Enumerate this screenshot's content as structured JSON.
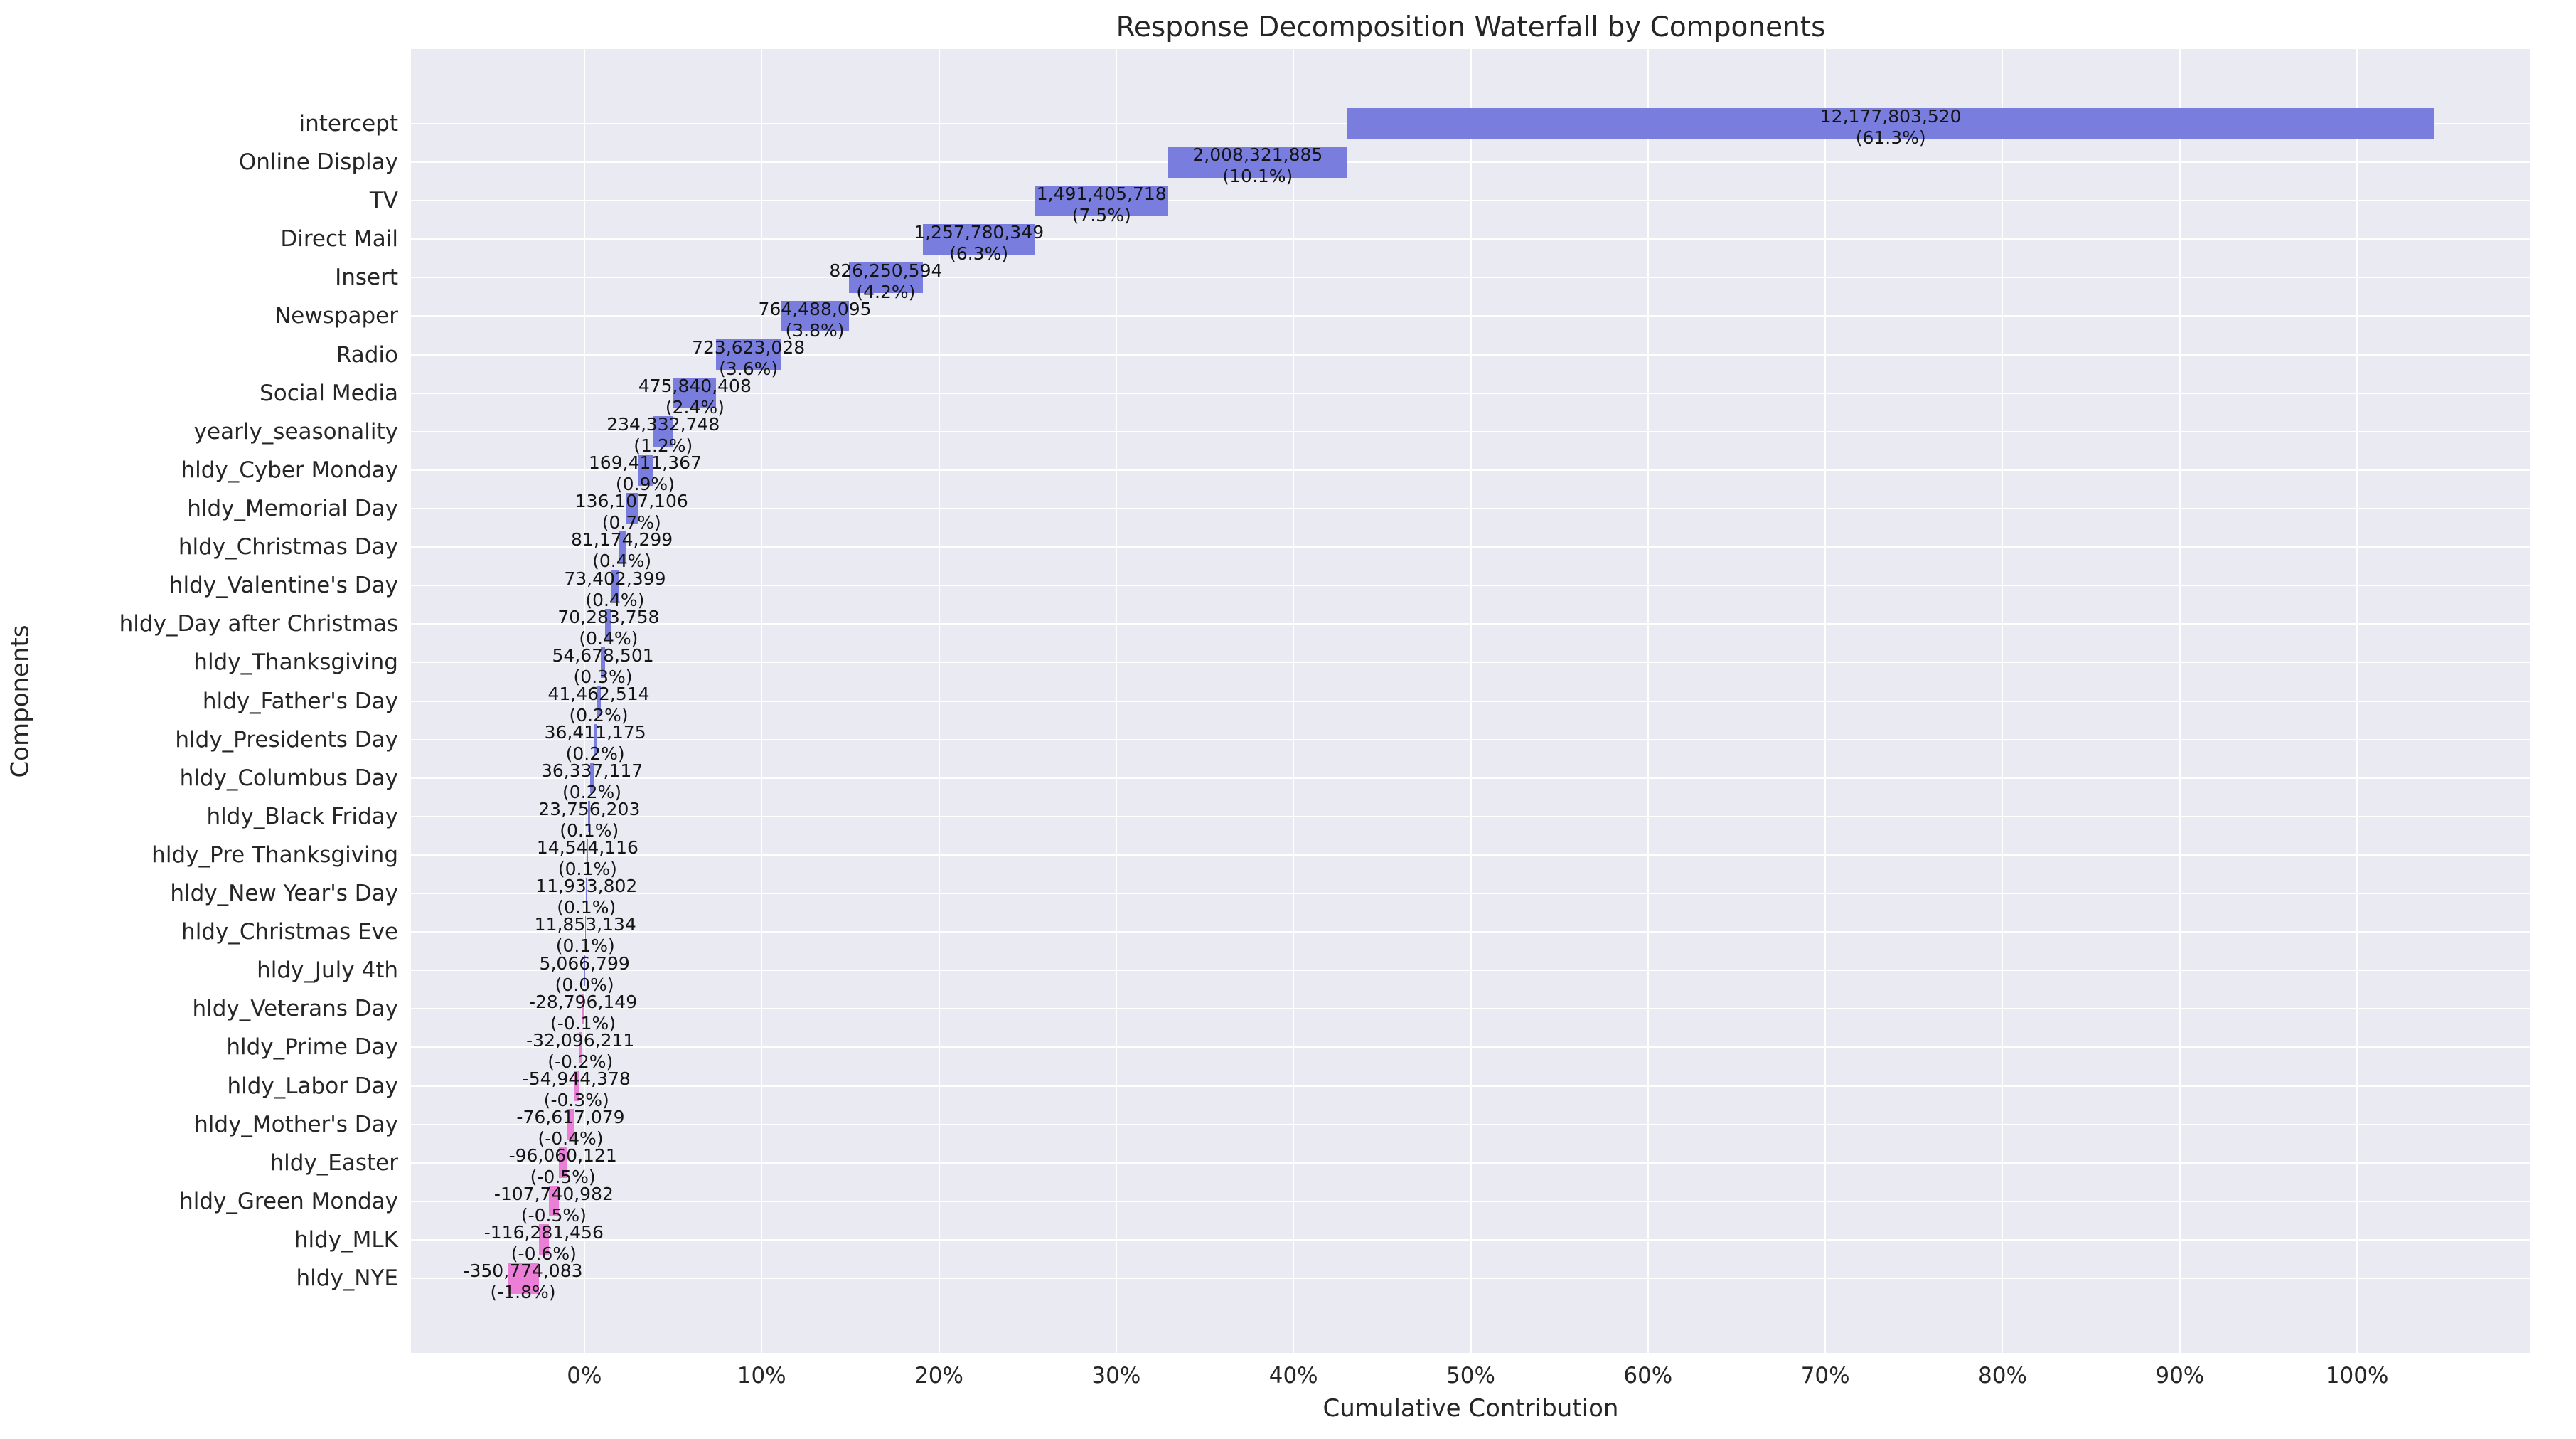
{
  "chart_data": {
    "type": "bar",
    "variant": "waterfall",
    "orientation": "horizontal",
    "title": "Response Decomposition Waterfall by Components",
    "xlabel": "Cumulative Contribution",
    "ylabel": "Components",
    "grid": true,
    "legend": false,
    "x_ticks": [
      {
        "value": 0,
        "label": "0%"
      },
      {
        "value": 10,
        "label": "10%"
      },
      {
        "value": 20,
        "label": "20%"
      },
      {
        "value": 30,
        "label": "30%"
      },
      {
        "value": 40,
        "label": "40%"
      },
      {
        "value": 50,
        "label": "50%"
      },
      {
        "value": 60,
        "label": "60%"
      },
      {
        "value": 70,
        "label": "70%"
      },
      {
        "value": 80,
        "label": "80%"
      },
      {
        "value": 90,
        "label": "90%"
      },
      {
        "value": 100,
        "label": "100%"
      }
    ],
    "colors": {
      "positive": "#797EDE",
      "negative": "#EB7ED6",
      "plot_background": "#EAEAF2",
      "grid_line": "#FFFFFF",
      "text": "#262626"
    },
    "components": [
      {
        "name": "intercept",
        "value": 12177803520,
        "value_label": "12,177,803,520",
        "pct_label": "(61.3%)"
      },
      {
        "name": "Online Display",
        "value": 2008321885,
        "value_label": "2,008,321,885",
        "pct_label": "(10.1%)"
      },
      {
        "name": "TV",
        "value": 1491405718,
        "value_label": "1,491,405,718",
        "pct_label": "(7.5%)"
      },
      {
        "name": "Direct Mail",
        "value": 1257780349,
        "value_label": "1,257,780,349",
        "pct_label": "(6.3%)"
      },
      {
        "name": "Insert",
        "value": 826250594,
        "value_label": "826,250,594",
        "pct_label": "(4.2%)"
      },
      {
        "name": "Newspaper",
        "value": 764488095,
        "value_label": "764,488,095",
        "pct_label": "(3.8%)"
      },
      {
        "name": "Radio",
        "value": 723623028,
        "value_label": "723,623,028",
        "pct_label": "(3.6%)"
      },
      {
        "name": "Social Media",
        "value": 475840408,
        "value_label": "475,840,408",
        "pct_label": "(2.4%)"
      },
      {
        "name": "yearly_seasonality",
        "value": 234332748,
        "value_label": "234,332,748",
        "pct_label": "(1.2%)"
      },
      {
        "name": "hldy_Cyber Monday",
        "value": 169411367,
        "value_label": "169,411,367",
        "pct_label": "(0.9%)"
      },
      {
        "name": "hldy_Memorial Day",
        "value": 136107106,
        "value_label": "136,107,106",
        "pct_label": "(0.7%)"
      },
      {
        "name": "hldy_Christmas Day",
        "value": 81174299,
        "value_label": "81,174,299",
        "pct_label": "(0.4%)"
      },
      {
        "name": "hldy_Valentine's Day",
        "value": 73402399,
        "value_label": "73,402,399",
        "pct_label": "(0.4%)"
      },
      {
        "name": "hldy_Day after Christmas",
        "value": 70283758,
        "value_label": "70,283,758",
        "pct_label": "(0.4%)"
      },
      {
        "name": "hldy_Thanksgiving",
        "value": 54678501,
        "value_label": "54,678,501",
        "pct_label": "(0.3%)"
      },
      {
        "name": "hldy_Father's Day",
        "value": 41462514,
        "value_label": "41,462,514",
        "pct_label": "(0.2%)"
      },
      {
        "name": "hldy_Presidents Day",
        "value": 36411175,
        "value_label": "36,411,175",
        "pct_label": "(0.2%)"
      },
      {
        "name": "hldy_Columbus Day",
        "value": 36337117,
        "value_label": "36,337,117",
        "pct_label": "(0.2%)"
      },
      {
        "name": "hldy_Black Friday",
        "value": 23756203,
        "value_label": "23,756,203",
        "pct_label": "(0.1%)"
      },
      {
        "name": "hldy_Pre Thanksgiving",
        "value": 14544116,
        "value_label": "14,544,116",
        "pct_label": "(0.1%)"
      },
      {
        "name": "hldy_New Year's Day",
        "value": 11933802,
        "value_label": "11,933,802",
        "pct_label": "(0.1%)"
      },
      {
        "name": "hldy_Christmas Eve",
        "value": 11853134,
        "value_label": "11,853,134",
        "pct_label": "(0.1%)"
      },
      {
        "name": "hldy_July 4th",
        "value": 5066799,
        "value_label": "5,066,799",
        "pct_label": "(0.0%)"
      },
      {
        "name": "hldy_Veterans Day",
        "value": -28796149,
        "value_label": "-28,796,149",
        "pct_label": "(-0.1%)"
      },
      {
        "name": "hldy_Prime Day",
        "value": -32096211,
        "value_label": "-32,096,211",
        "pct_label": "(-0.2%)"
      },
      {
        "name": "hldy_Labor Day",
        "value": -54944378,
        "value_label": "-54,944,378",
        "pct_label": "(-0.3%)"
      },
      {
        "name": "hldy_Mother's Day",
        "value": -76617079,
        "value_label": "-76,617,079",
        "pct_label": "(-0.4%)"
      },
      {
        "name": "hldy_Easter",
        "value": -96060121,
        "value_label": "-96,060,121",
        "pct_label": "(-0.5%)"
      },
      {
        "name": "hldy_Green Monday",
        "value": -107740982,
        "value_label": "-107,740,982",
        "pct_label": "(-0.5%)"
      },
      {
        "name": "hldy_MLK",
        "value": -116281456,
        "value_label": "-116,281,456",
        "pct_label": "(-0.6%)"
      },
      {
        "name": "hldy_NYE",
        "value": -350774083,
        "value_label": "-350,774,083",
        "pct_label": "(-1.8%)"
      }
    ]
  }
}
